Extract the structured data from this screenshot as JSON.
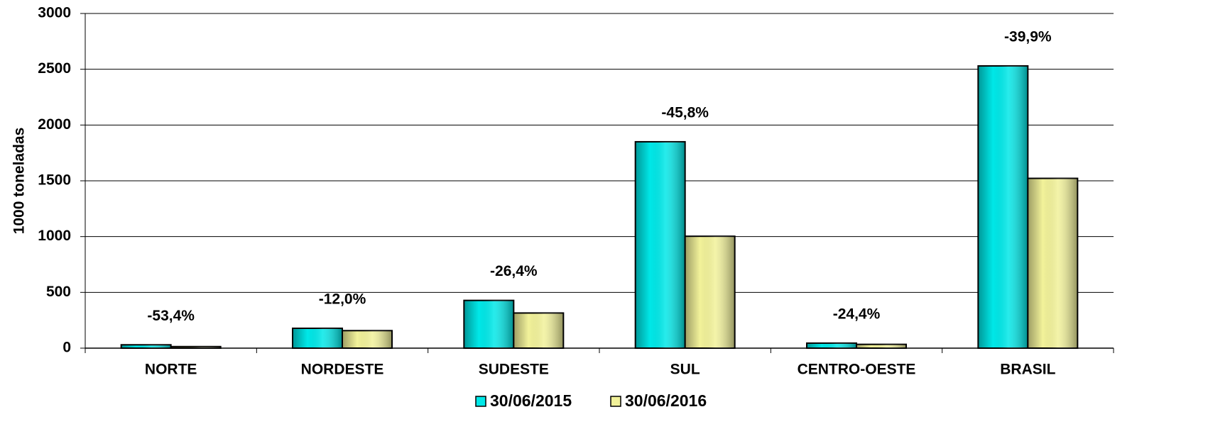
{
  "chart_data": {
    "type": "bar",
    "y_label": "1000 toneladas",
    "categories": [
      "NORTE",
      "NORDESTE",
      "SUDESTE",
      "SUL",
      "CENTRO-OESTE",
      "BRASIL"
    ],
    "series": [
      {
        "name": "30/06/2015",
        "color": "#00e8e8",
        "values": [
          30,
          178,
          428,
          1850,
          45,
          2530
        ]
      },
      {
        "name": "30/06/2016",
        "color": "#f2f29a",
        "values": [
          14,
          157,
          315,
          1003,
          34,
          1522
        ]
      }
    ],
    "annotations": [
      "-53,4%",
      "-12,0%",
      "-26,4%",
      "-45,8%",
      "-24,4%",
      "-39,9%"
    ],
    "ylim": [
      0,
      3000
    ],
    "yticks": [
      0,
      500,
      1000,
      1500,
      2000,
      2500,
      3000
    ],
    "grid": true,
    "legend": "bottom"
  }
}
